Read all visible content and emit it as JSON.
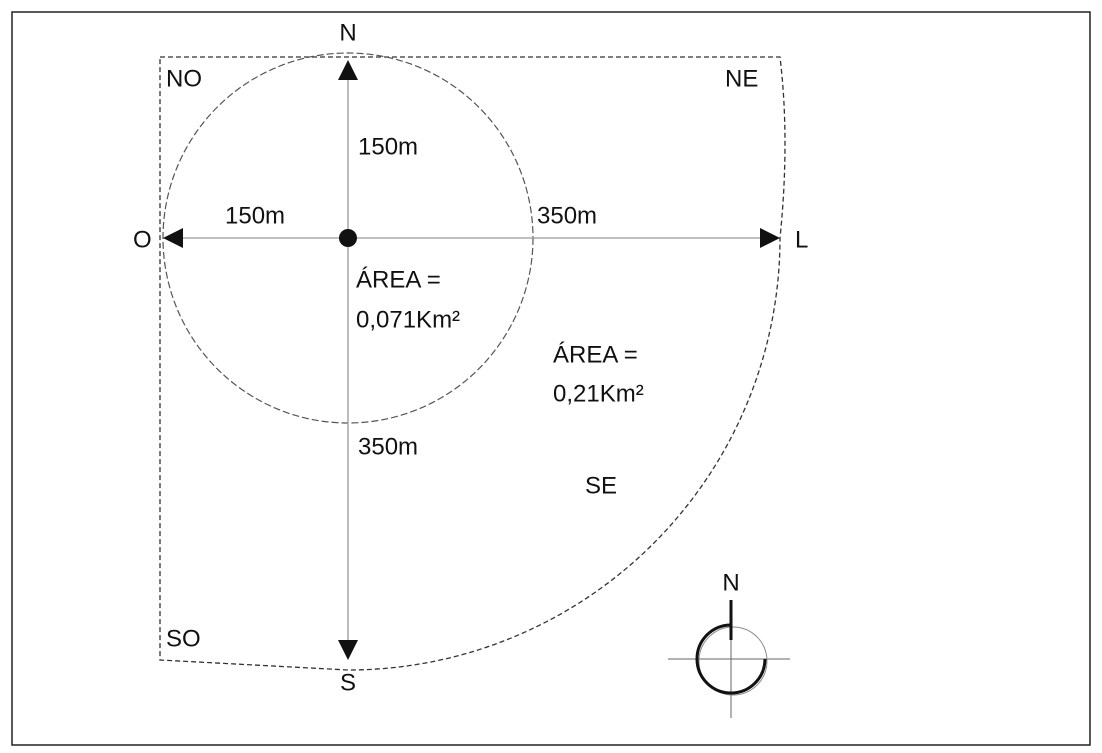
{
  "directions": {
    "north": "N",
    "northwest": "NO",
    "northeast": "NE",
    "west": "O",
    "east": "L",
    "south": "S",
    "southwest": "SO",
    "southeast": "SE"
  },
  "distances": {
    "north_inner": "150m",
    "west_inner": "150m",
    "east_outer": "350m",
    "south_outer": "350m"
  },
  "areas": {
    "inner": {
      "line1": "ÁREA =",
      "line2": "0,071Km²"
    },
    "outer": {
      "line1": "ÁREA =",
      "line2": "0,21Km²"
    }
  },
  "compass": {
    "label": "N"
  }
}
